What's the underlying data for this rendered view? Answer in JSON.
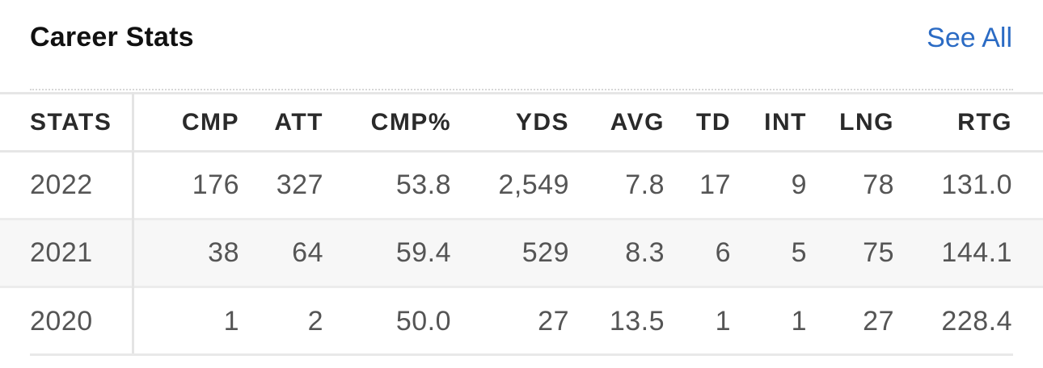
{
  "header": {
    "title": "Career Stats",
    "see_all_label": "See All"
  },
  "colors": {
    "link": "#2b6bc4",
    "title": "#111111",
    "cell_text": "#555555",
    "divider": "#e6e6e6",
    "alt_row_bg": "#f7f7f7"
  },
  "table": {
    "columns": [
      "STATS",
      "CMP",
      "ATT",
      "CMP%",
      "YDS",
      "AVG",
      "TD",
      "INT",
      "LNG",
      "RTG"
    ],
    "rows": [
      [
        "2022",
        "176",
        "327",
        "53.8",
        "2,549",
        "7.8",
        "17",
        "9",
        "78",
        "131.0"
      ],
      [
        "2021",
        "38",
        "64",
        "59.4",
        "529",
        "8.3",
        "6",
        "5",
        "75",
        "144.1"
      ],
      [
        "2020",
        "1",
        "2",
        "50.0",
        "27",
        "13.5",
        "1",
        "1",
        "27",
        "228.4"
      ]
    ]
  }
}
